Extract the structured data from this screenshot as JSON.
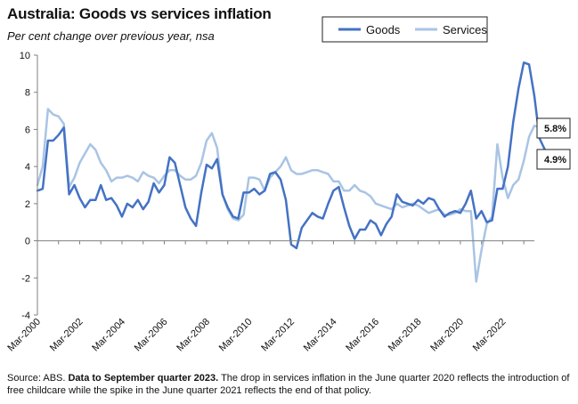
{
  "title": "Australia: Goods vs services inflation",
  "subtitle": "Per cent change over previous year, nsa",
  "source": {
    "prefix": "Source: ABS. ",
    "bold": "Data to September quarter 2023.",
    "rest": " The drop in services inflation in the June quarter 2020 reflects the introduction of free childcare while the spike in the June quarter 2021 reflects the end of that policy."
  },
  "colors": {
    "goods": "#4472C4",
    "services": "#A9C4E4",
    "axis": "#7f7f7f"
  },
  "callouts": {
    "services": "5.8%",
    "goods": "4.9%"
  },
  "chart_data": {
    "type": "line",
    "title": "Australia: Goods vs services inflation",
    "ylabel": "Per cent change over previous year, nsa",
    "ylim": [
      -4,
      10
    ],
    "yticks": [
      -4,
      -2,
      0,
      2,
      4,
      6,
      8,
      10
    ],
    "xlim": [
      2000.17,
      2023.67
    ],
    "xticks": [
      {
        "label": "Mar-2000",
        "x": 2000.17
      },
      {
        "label": "Mar-2002",
        "x": 2002.17
      },
      {
        "label": "Mar-2004",
        "x": 2004.17
      },
      {
        "label": "Mar-2006",
        "x": 2006.17
      },
      {
        "label": "Mar-2008",
        "x": 2008.17
      },
      {
        "label": "Mar-2010",
        "x": 2010.17
      },
      {
        "label": "Mar-2012",
        "x": 2012.17
      },
      {
        "label": "Mar-2014",
        "x": 2014.17
      },
      {
        "label": "Mar-2016",
        "x": 2016.17
      },
      {
        "label": "Mar-2018",
        "x": 2018.17
      },
      {
        "label": "Mar-2020",
        "x": 2020.17
      },
      {
        "label": "Mar-2022",
        "x": 2022.17
      }
    ],
    "x_start": 2000.17,
    "x_step": 0.25,
    "legend": [
      "Goods",
      "Services"
    ],
    "series": [
      {
        "name": "Goods",
        "values": [
          2.7,
          2.8,
          5.4,
          5.4,
          5.7,
          6.1,
          2.5,
          3.0,
          2.3,
          1.8,
          2.2,
          2.2,
          3.0,
          2.2,
          2.3,
          1.9,
          1.3,
          2.0,
          1.8,
          2.2,
          1.7,
          2.1,
          3.1,
          2.6,
          3.0,
          4.5,
          4.2,
          3.0,
          1.8,
          1.2,
          0.8,
          2.6,
          4.1,
          3.9,
          4.4,
          2.5,
          1.8,
          1.3,
          1.2,
          2.6,
          2.6,
          2.8,
          2.5,
          2.7,
          3.6,
          3.7,
          3.3,
          2.2,
          -0.2,
          -0.4,
          0.7,
          1.1,
          1.5,
          1.3,
          1.2,
          2.0,
          2.7,
          2.9,
          1.8,
          0.8,
          0.1,
          0.6,
          0.6,
          1.1,
          0.9,
          0.3,
          0.9,
          1.3,
          2.5,
          2.1,
          2.0,
          1.9,
          2.2,
          2.0,
          2.3,
          2.2,
          1.7,
          1.3,
          1.5,
          1.6,
          1.5,
          2.0,
          2.7,
          1.2,
          1.6,
          1.0,
          1.1,
          2.8,
          2.8,
          4.0,
          6.4,
          8.2,
          9.6,
          9.5,
          7.8,
          5.5,
          4.9
        ]
      },
      {
        "name": "Services",
        "values": [
          3.0,
          4.0,
          7.1,
          6.8,
          6.7,
          6.3,
          2.9,
          3.4,
          4.2,
          4.7,
          5.2,
          4.9,
          4.2,
          3.8,
          3.2,
          3.4,
          3.4,
          3.5,
          3.4,
          3.2,
          3.7,
          3.5,
          3.4,
          3.1,
          3.5,
          3.8,
          3.8,
          3.5,
          3.3,
          3.3,
          3.5,
          4.2,
          5.4,
          5.8,
          5.0,
          2.5,
          1.7,
          1.2,
          1.1,
          1.4,
          3.4,
          3.4,
          3.3,
          2.7,
          3.4,
          3.7,
          4.0,
          4.5,
          3.8,
          3.6,
          3.6,
          3.7,
          3.8,
          3.8,
          3.7,
          3.6,
          3.2,
          3.2,
          2.7,
          2.7,
          3.0,
          2.7,
          2.6,
          2.4,
          2.0,
          1.9,
          1.8,
          1.7,
          2.0,
          1.8,
          1.9,
          2.0,
          1.9,
          1.7,
          1.5,
          1.6,
          1.7,
          1.4,
          1.4,
          1.5,
          1.7,
          1.6,
          1.6,
          -2.2,
          -0.5,
          0.9,
          1.3,
          5.2,
          3.4,
          2.3,
          3.0,
          3.3,
          4.3,
          5.6,
          6.2,
          6.1,
          5.8
        ]
      }
    ]
  }
}
